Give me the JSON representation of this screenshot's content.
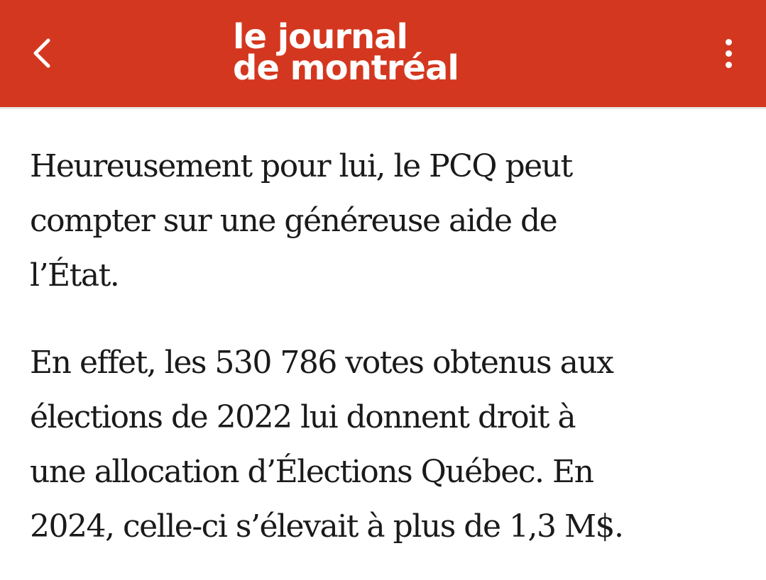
{
  "header": {
    "logo_line1": "le journal",
    "logo_line2": "de montréal",
    "brand_color": "#d4371f",
    "back_icon": "chevron-left-icon",
    "menu_icon": "more-vertical-icon"
  },
  "article": {
    "paragraphs": [
      {
        "lines": [
          "Heureusement pour lui, le PCQ peut",
          "compter sur une généreuse aide de",
          "l’État."
        ]
      },
      {
        "lines": [
          "En effet, les 530 786 votes obtenus aux",
          "élections de 2022 lui donnent droit à",
          "une allocation d’Élections Québec. En",
          "2024, celle-ci s’élevait à plus de 1,3 M$."
        ]
      }
    ]
  }
}
